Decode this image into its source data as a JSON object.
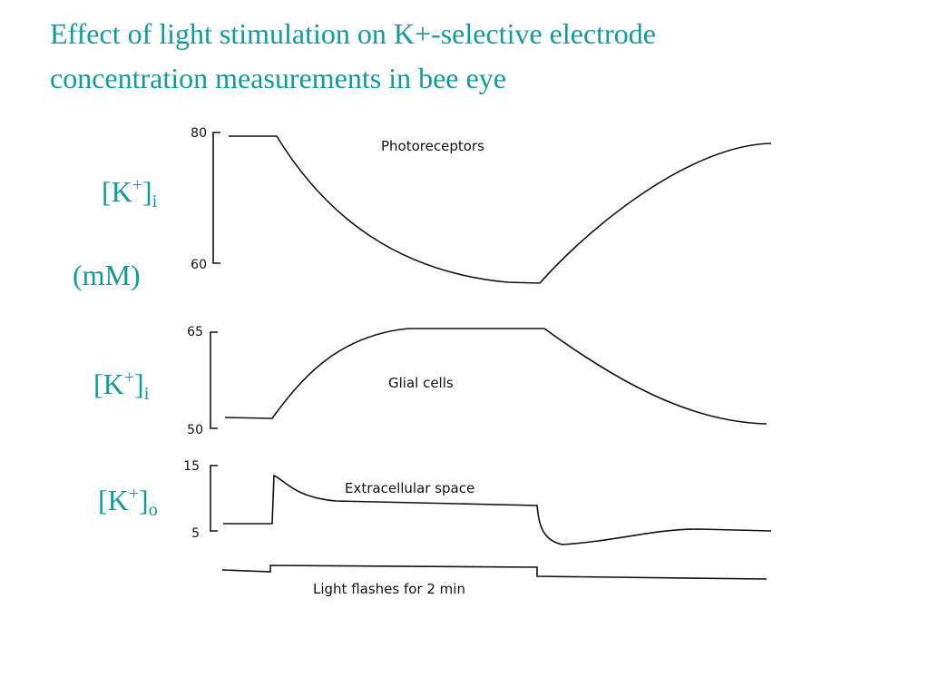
{
  "title": [
    "Effect of light stimulation on K+-selective electrode",
    "concentration measurements in bee eye"
  ],
  "side_labels": [
    {
      "base": "[K",
      "sup": "+",
      "end": "]",
      "sub": "i"
    },
    {
      "text": "(mM)"
    },
    {
      "base": "[K",
      "sup": "+",
      "end": "]",
      "sub": "i"
    },
    {
      "base": "[K",
      "sup": "+",
      "end": "]",
      "sub": "o"
    }
  ],
  "panels": [
    {
      "top_tick": "80",
      "bottom_tick": "60",
      "label": "Photoreceptors"
    },
    {
      "top_tick": "65",
      "bottom_tick": "50",
      "label": "Glial cells"
    },
    {
      "top_tick": "15",
      "bottom_tick": "5",
      "label": "Extracellular space"
    }
  ],
  "stimulus_label": "Light flashes for 2 min"
}
